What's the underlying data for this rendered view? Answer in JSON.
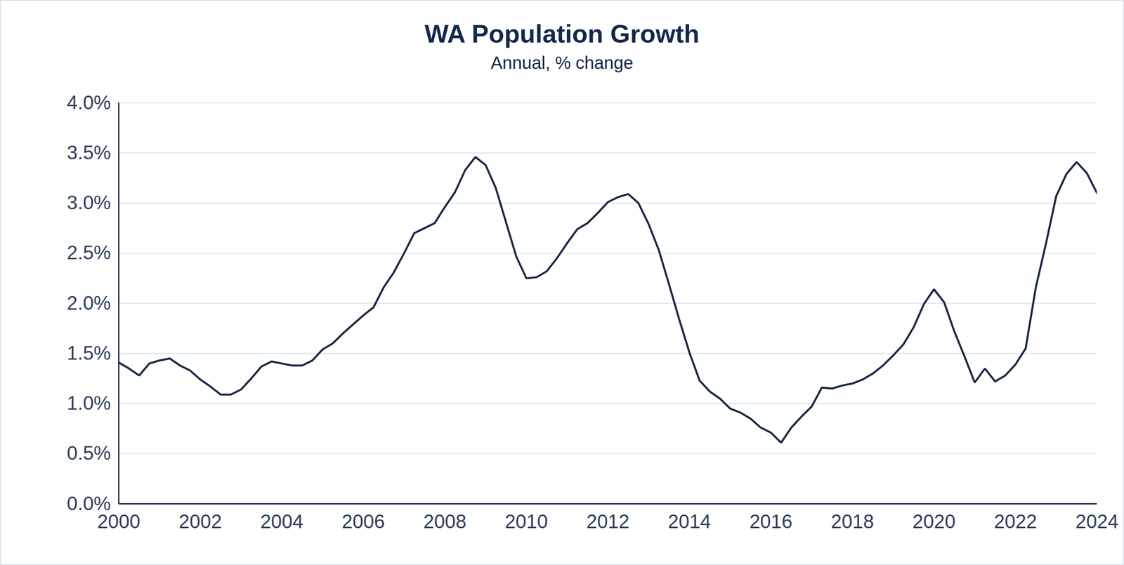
{
  "chart_data": {
    "type": "line",
    "title": "WA Population Growth",
    "subtitle": "Annual, % change",
    "color": "#1a2744",
    "grid": true,
    "x": [
      2000,
      2000.25,
      2000.5,
      2000.75,
      2001,
      2001.25,
      2001.5,
      2001.75,
      2002,
      2002.25,
      2002.5,
      2002.75,
      2003,
      2003.25,
      2003.5,
      2003.75,
      2004,
      2004.25,
      2004.5,
      2004.75,
      2005,
      2005.25,
      2005.5,
      2005.75,
      2006,
      2006.25,
      2006.5,
      2006.75,
      2007,
      2007.25,
      2007.5,
      2007.75,
      2008,
      2008.25,
      2008.5,
      2008.75,
      2009,
      2009.25,
      2009.5,
      2009.75,
      2010,
      2010.25,
      2010.5,
      2010.75,
      2011,
      2011.25,
      2011.5,
      2011.75,
      2012,
      2012.25,
      2012.5,
      2012.75,
      2013,
      2013.25,
      2013.5,
      2013.75,
      2014,
      2014.25,
      2014.5,
      2014.75,
      2015,
      2015.25,
      2015.5,
      2015.75,
      2016,
      2016.25,
      2016.5,
      2016.75,
      2017,
      2017.25,
      2017.5,
      2017.75,
      2018,
      2018.25,
      2018.5,
      2018.75,
      2019,
      2019.25,
      2019.5,
      2019.75,
      2020,
      2020.25,
      2020.5,
      2020.75,
      2021,
      2021.25,
      2021.5,
      2021.75,
      2022,
      2022.25,
      2022.5,
      2022.75,
      2023,
      2023.25,
      2023.5,
      2023.75,
      2024
    ],
    "values": [
      1.41,
      1.35,
      1.28,
      1.4,
      1.43,
      1.45,
      1.38,
      1.33,
      1.24,
      1.17,
      1.09,
      1.09,
      1.14,
      1.25,
      1.37,
      1.42,
      1.4,
      1.38,
      1.38,
      1.43,
      1.54,
      1.6,
      1.7,
      1.79,
      1.88,
      1.96,
      2.16,
      2.31,
      2.5,
      2.7,
      2.75,
      2.8,
      2.96,
      3.11,
      3.33,
      3.46,
      3.38,
      3.15,
      2.81,
      2.47,
      2.25,
      2.26,
      2.32,
      2.45,
      2.6,
      2.74,
      2.8,
      2.9,
      3.01,
      3.06,
      3.09,
      3.0,
      2.79,
      2.53,
      2.19,
      1.84,
      1.51,
      1.23,
      1.12,
      1.05,
      0.95,
      0.91,
      0.85,
      0.76,
      0.71,
      0.61,
      0.76,
      0.87,
      0.97,
      1.16,
      1.15,
      1.18,
      1.2,
      1.24,
      1.3,
      1.38,
      1.48,
      1.59,
      1.76,
      1.99,
      2.14,
      2.01,
      1.72,
      1.47,
      1.21,
      1.35,
      1.22,
      1.28,
      1.39,
      1.55,
      2.16,
      2.6,
      3.07,
      3.29,
      3.41,
      3.3,
      3.1
    ],
    "xlim": [
      2000,
      2024
    ],
    "xticks": [
      2000,
      2002,
      2004,
      2006,
      2008,
      2010,
      2012,
      2014,
      2016,
      2018,
      2020,
      2022,
      2024
    ],
    "ylim": [
      0,
      4
    ],
    "yticks": [
      {
        "value": 0,
        "label": "0.0%"
      },
      {
        "value": 0.5,
        "label": "0.5%"
      },
      {
        "value": 1,
        "label": "1.0%"
      },
      {
        "value": 1.5,
        "label": "1.5%"
      },
      {
        "value": 2,
        "label": "2.0%"
      },
      {
        "value": 2.5,
        "label": "2.5%"
      },
      {
        "value": 3,
        "label": "3.0%"
      },
      {
        "value": 3.5,
        "label": "3.5%"
      },
      {
        "value": 4,
        "label": "4.0%"
      }
    ]
  }
}
